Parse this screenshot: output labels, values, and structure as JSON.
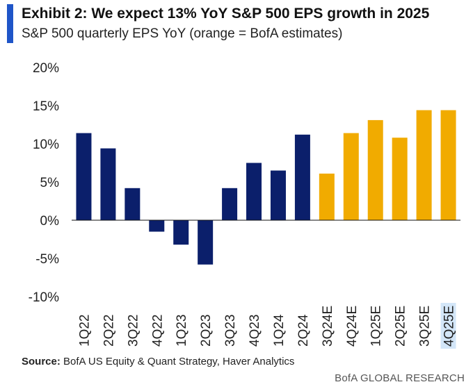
{
  "header": {
    "title": "Exhibit 2: We expect 13% YoY S&P 500 EPS growth in 2025",
    "subtitle": "S&P 500 quarterly EPS YoY (orange = BofA estimates)"
  },
  "footer": {
    "source_label": "Source:",
    "source_text": " BofA US Equity & Quant Strategy, Haver Analytics",
    "brand": "BofA GLOBAL RESEARCH"
  },
  "colors": {
    "actual": "#0b1f6b",
    "estimate": "#f1ab00",
    "accent": "#1f55c8",
    "highlight": "#d3e6f8"
  },
  "chart_data": {
    "type": "bar",
    "categories": [
      "1Q22",
      "2Q22",
      "3Q22",
      "4Q22",
      "1Q23",
      "2Q23",
      "3Q23",
      "4Q23",
      "1Q24",
      "2Q24",
      "3Q24E",
      "4Q24E",
      "1Q25E",
      "2Q25E",
      "3Q25E",
      "4Q25E"
    ],
    "values": [
      11.4,
      9.4,
      4.2,
      -1.5,
      -3.2,
      -5.8,
      4.2,
      7.5,
      6.5,
      11.2,
      6.1,
      11.4,
      13.1,
      10.8,
      14.4,
      14.4
    ],
    "is_estimate": [
      false,
      false,
      false,
      false,
      false,
      false,
      false,
      false,
      false,
      false,
      true,
      true,
      true,
      true,
      true,
      true
    ],
    "highlighted_category": "4Q25E",
    "yticks": [
      "20%",
      "15%",
      "10%",
      "5%",
      "0%",
      "-5%",
      "-10%"
    ],
    "ytick_values": [
      20,
      15,
      10,
      5,
      0,
      -5,
      -10
    ],
    "ylim": [
      -10,
      20
    ],
    "grid": false
  }
}
